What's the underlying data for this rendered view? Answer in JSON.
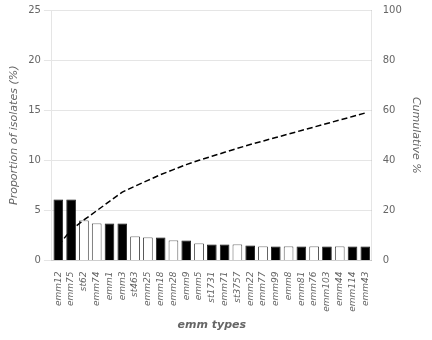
{
  "chart_data": {
    "type": "bar",
    "xlabel": "emm types",
    "ylabel": "Proportion of isolates (%)",
    "y2label": "Cumulative %",
    "categories": [
      "emm12",
      "emm75",
      "st62",
      "emm74",
      "emm1",
      "emm3",
      "st463",
      "emm25",
      "emm18",
      "emm28",
      "emm9",
      "emm5",
      "st1731",
      "emm71",
      "st3757",
      "emm22",
      "emm77",
      "emm99",
      "emm8",
      "emm81",
      "emm76",
      "emm103",
      "emm44",
      "emm114",
      "emm43"
    ],
    "series": [
      {
        "type": "bar",
        "colors": [
          "black",
          "black",
          "white",
          "white",
          "black",
          "black",
          "white",
          "white",
          "black",
          "white",
          "black",
          "white",
          "black",
          "black",
          "white",
          "black",
          "white",
          "black",
          "white",
          "black",
          "white",
          "black",
          "white",
          "black",
          "black"
        ],
        "values": [
          6.1,
          6.1,
          4.0,
          3.7,
          3.7,
          3.7,
          2.4,
          2.3,
          2.3,
          2.0,
          2.0,
          1.7,
          1.6,
          1.6,
          1.6,
          1.5,
          1.4,
          1.4,
          1.4,
          1.4,
          1.4,
          1.4,
          1.4,
          1.4,
          1.4
        ]
      },
      {
        "type": "line",
        "axis": "y2",
        "color": "black",
        "line_style": "dashed",
        "values": [
          6.1,
          12.2,
          16.2,
          19.9,
          23.6,
          27.3,
          29.7,
          32.0,
          34.3,
          36.3,
          38.3,
          40.0,
          41.6,
          43.2,
          44.8,
          46.3,
          47.7,
          49.1,
          50.5,
          51.9,
          53.3,
          54.7,
          56.1,
          57.5,
          58.9
        ]
      }
    ],
    "ylim": [
      0,
      25
    ],
    "yticks": [
      0,
      5,
      10,
      15,
      20,
      25
    ],
    "y2lim": [
      0,
      100
    ],
    "y2ticks": [
      0,
      20,
      40,
      60,
      80,
      100
    ],
    "grid": true
  }
}
